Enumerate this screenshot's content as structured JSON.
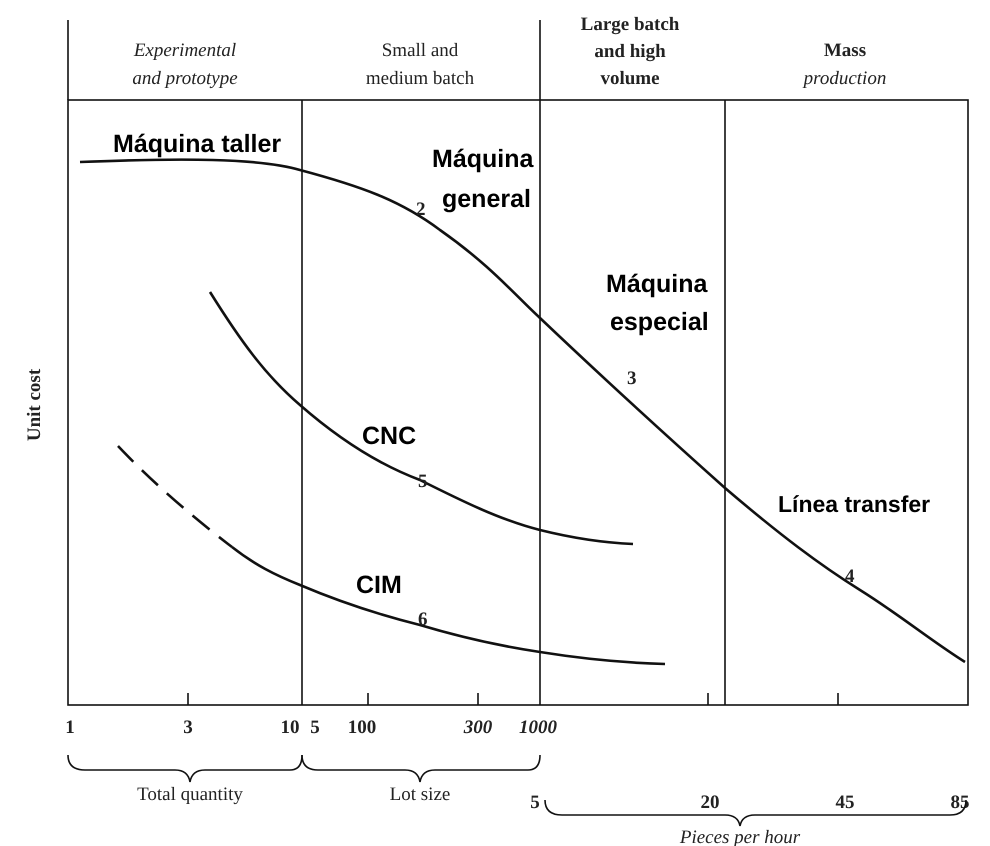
{
  "headers": [
    {
      "lines": [
        "Experimental",
        "and prototype"
      ]
    },
    {
      "lines": [
        "Small and",
        "medium batch"
      ]
    },
    {
      "lines": [
        "Large batch",
        "and high",
        "volume"
      ]
    },
    {
      "lines": [
        "Mass",
        "production"
      ]
    }
  ],
  "curve_labels": [
    {
      "lines": [
        "Máquina taller"
      ]
    },
    {
      "lines": [
        "Máquina",
        "general"
      ]
    },
    {
      "lines": [
        "Máquina",
        "especial"
      ]
    },
    {
      "lines": [
        "CNC"
      ]
    },
    {
      "lines": [
        "Línea transfer"
      ]
    },
    {
      "lines": [
        "CIM"
      ]
    }
  ],
  "curve_numbers": [
    "2",
    "3",
    "5",
    "6",
    "4"
  ],
  "axis_label": "Unit cost",
  "quantity_ticks": [
    "1",
    "3",
    "10",
    "5",
    "100",
    "300",
    "1000"
  ],
  "rate_ticks": [
    "5",
    "20",
    "45",
    "85"
  ],
  "braces": [
    "Total quantity",
    "Lot size",
    "Pieces per hour"
  ]
}
